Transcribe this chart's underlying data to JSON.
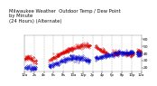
{
  "title": "Milwaukee Weather  Outdoor Temp / Dew Point\nby Minute\n(24 Hours) (Alternate)",
  "title_fontsize": 3.8,
  "bg_color": "#ffffff",
  "plot_bg_color": "#ffffff",
  "temp_color": "#dd0000",
  "dew_color": "#0000cc",
  "ylim": [
    15,
    65
  ],
  "yticks": [
    20,
    30,
    40,
    50,
    60
  ],
  "ylabel_fontsize": 3.2,
  "xlabel_fontsize": 2.8,
  "grid_color": "#aaaaaa",
  "marker_size": 0.5,
  "n_points": 1440,
  "seed": 42
}
